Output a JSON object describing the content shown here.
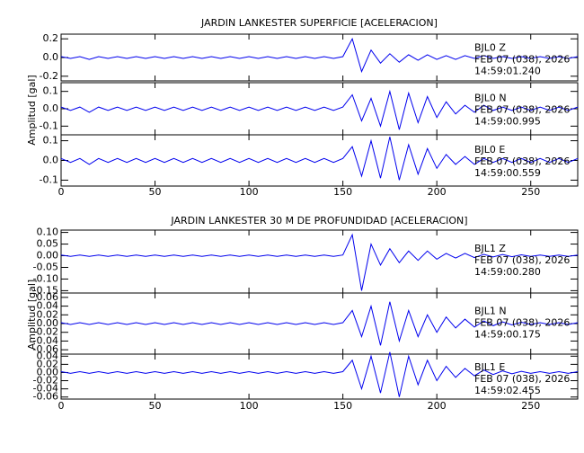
{
  "chart_data": [
    {
      "type": "line",
      "title": "JARDIN LANKESTER SUPERFICIE [ACELERACION]",
      "ylabel": "Amplitud [gal]",
      "xlim": [
        0,
        275
      ],
      "xticks": [
        0,
        50,
        100,
        150,
        200,
        250
      ],
      "x": [
        0,
        5,
        10,
        15,
        20,
        25,
        30,
        35,
        40,
        45,
        50,
        55,
        60,
        65,
        70,
        75,
        80,
        85,
        90,
        95,
        100,
        105,
        110,
        115,
        120,
        125,
        130,
        135,
        140,
        145,
        150,
        155,
        160,
        165,
        170,
        175,
        180,
        185,
        190,
        195,
        200,
        205,
        210,
        215,
        220,
        225,
        230,
        235,
        240,
        245,
        250,
        255,
        260,
        265,
        270,
        275
      ],
      "panels": [
        {
          "name": "BJL0  Z",
          "date": "FEB 07 (038), 2026",
          "time": "14:59:01.240",
          "color": "#0000ee",
          "ylim": [
            -0.25,
            0.25
          ],
          "yticks": [
            0.2,
            {
              "value": 0,
              "label": "0.0"
            },
            -0.2
          ],
          "values": [
            0.01,
            -0.01,
            0.01,
            -0.02,
            0.01,
            -0.01,
            0.01,
            -0.01,
            0.01,
            -0.01,
            0.01,
            -0.01,
            0.01,
            -0.01,
            0.01,
            -0.01,
            0.01,
            -0.01,
            0.01,
            -0.01,
            0.01,
            -0.01,
            0.01,
            -0.01,
            0.01,
            -0.01,
            0.01,
            -0.01,
            0.01,
            -0.01,
            0.01,
            0.2,
            -0.15,
            0.08,
            -0.06,
            0.04,
            -0.05,
            0.03,
            -0.03,
            0.03,
            -0.02,
            0.02,
            -0.02,
            0.02,
            -0.01,
            0.02,
            -0.01,
            0.01,
            -0.01,
            0.01,
            -0.01,
            0.01,
            -0.01,
            0.01,
            -0.01,
            0.01
          ]
        },
        {
          "name": "BJL0  N",
          "date": "FEB 07 (038), 2026",
          "time": "14:59:00.995",
          "color": "#0000ee",
          "ylim": [
            -0.15,
            0.15
          ],
          "yticks": [
            0.1,
            {
              "value": 0,
              "label": "0.0"
            },
            -0.1
          ],
          "values": [
            0.01,
            -0.01,
            0.01,
            -0.02,
            0.01,
            -0.01,
            0.01,
            -0.01,
            0.01,
            -0.01,
            0.01,
            -0.01,
            0.01,
            -0.01,
            0.01,
            -0.01,
            0.01,
            -0.01,
            0.01,
            -0.01,
            0.01,
            -0.01,
            0.01,
            -0.01,
            0.01,
            -0.01,
            0.01,
            -0.01,
            0.01,
            -0.01,
            0.01,
            0.08,
            -0.07,
            0.06,
            -0.1,
            0.1,
            -0.12,
            0.09,
            -0.08,
            0.07,
            -0.05,
            0.04,
            -0.03,
            0.02,
            -0.02,
            0.02,
            -0.01,
            0.01,
            -0.01,
            0.01,
            -0.01,
            0.01,
            -0.01,
            0.01,
            -0.01,
            0.01
          ]
        },
        {
          "name": "BJL0  E",
          "date": "FEB 07 (038), 2026",
          "time": "14:59:00.559",
          "color": "#0000ee",
          "ylim": [
            -0.13,
            0.13
          ],
          "yticks": [
            0.1,
            {
              "value": 0,
              "label": "0.0"
            },
            -0.1
          ],
          "values": [
            0.01,
            -0.01,
            0.01,
            -0.02,
            0.01,
            -0.01,
            0.01,
            -0.01,
            0.01,
            -0.01,
            0.01,
            -0.01,
            0.01,
            -0.01,
            0.01,
            -0.01,
            0.01,
            -0.01,
            0.01,
            -0.01,
            0.01,
            -0.01,
            0.01,
            -0.01,
            0.01,
            -0.01,
            0.01,
            -0.01,
            0.01,
            -0.01,
            0.01,
            0.07,
            -0.08,
            0.1,
            -0.09,
            0.12,
            -0.1,
            0.08,
            -0.07,
            0.06,
            -0.04,
            0.03,
            -0.02,
            0.02,
            -0.02,
            0.01,
            -0.01,
            0.01,
            -0.01,
            0.01,
            -0.01,
            0.01,
            -0.01,
            0.01,
            -0.01,
            0.01
          ]
        }
      ]
    },
    {
      "type": "line",
      "title": "JARDIN LANKESTER 30 M DE PROFUNDIDAD [ACELERACION]",
      "ylabel": "Amplitud [gal]",
      "xlim": [
        0,
        275
      ],
      "xticks": [
        0,
        50,
        100,
        150,
        200,
        250
      ],
      "x": [
        0,
        5,
        10,
        15,
        20,
        25,
        30,
        35,
        40,
        45,
        50,
        55,
        60,
        65,
        70,
        75,
        80,
        85,
        90,
        95,
        100,
        105,
        110,
        115,
        120,
        125,
        130,
        135,
        140,
        145,
        150,
        155,
        160,
        165,
        170,
        175,
        180,
        185,
        190,
        195,
        200,
        205,
        210,
        215,
        220,
        225,
        230,
        235,
        240,
        245,
        250,
        255,
        260,
        265,
        270,
        275
      ],
      "panels": [
        {
          "name": "BJL1  Z",
          "date": "FEB 07 (038), 2026",
          "time": "14:59:00.280",
          "color": "#0000ee",
          "ylim": [
            -0.16,
            0.11
          ],
          "yticks": [
            {
              "value": 0.1,
              "label": "0.10"
            },
            0.05,
            {
              "value": 0,
              "label": "0.00"
            },
            -0.05,
            {
              "value": -0.1,
              "label": "-0.10"
            },
            -0.15
          ],
          "values": [
            0.003,
            -0.003,
            0.003,
            -0.003,
            0.003,
            -0.003,
            0.003,
            -0.003,
            0.003,
            -0.003,
            0.003,
            -0.003,
            0.003,
            -0.003,
            0.003,
            -0.003,
            0.003,
            -0.003,
            0.003,
            -0.003,
            0.003,
            -0.003,
            0.003,
            -0.003,
            0.003,
            -0.003,
            0.003,
            -0.003,
            0.003,
            -0.003,
            0.003,
            0.09,
            -0.15,
            0.05,
            -0.04,
            0.03,
            -0.03,
            0.02,
            -0.02,
            0.02,
            -0.015,
            0.01,
            -0.01,
            0.01,
            -0.008,
            0.006,
            -0.005,
            0.005,
            -0.004,
            0.004,
            -0.003,
            0.003,
            -0.003,
            0.003,
            -0.003,
            0.003
          ]
        },
        {
          "name": "BJL1  N",
          "date": "FEB 07 (038), 2026",
          "time": "14:59:00.175",
          "color": "#0000ee",
          "ylim": [
            -0.07,
            0.07
          ],
          "yticks": [
            0.06,
            0.04,
            0.02,
            {
              "value": 0,
              "label": "0.00"
            },
            -0.02,
            -0.04,
            -0.06
          ],
          "values": [
            0.002,
            -0.002,
            0.002,
            -0.002,
            0.002,
            -0.002,
            0.002,
            -0.002,
            0.002,
            -0.002,
            0.002,
            -0.002,
            0.002,
            -0.002,
            0.002,
            -0.002,
            0.002,
            -0.002,
            0.002,
            -0.002,
            0.002,
            -0.002,
            0.002,
            -0.002,
            0.002,
            -0.002,
            0.002,
            -0.002,
            0.002,
            -0.002,
            0.002,
            0.03,
            -0.03,
            0.04,
            -0.05,
            0.05,
            -0.04,
            0.03,
            -0.03,
            0.02,
            -0.02,
            0.015,
            -0.01,
            0.01,
            -0.008,
            0.006,
            -0.005,
            0.004,
            -0.003,
            0.003,
            -0.002,
            0.002,
            -0.002,
            0.002,
            -0.002,
            0.002
          ]
        },
        {
          "name": "BJL1  E",
          "date": "FEB 07 (038), 2026",
          "time": "14:59:02.455",
          "color": "#0000ee",
          "ylim": [
            -0.065,
            0.045
          ],
          "yticks": [
            0.04,
            0.02,
            {
              "value": 0,
              "label": "0.00"
            },
            -0.02,
            -0.04,
            -0.06
          ],
          "values": [
            0.002,
            -0.002,
            0.002,
            -0.002,
            0.002,
            -0.002,
            0.002,
            -0.002,
            0.002,
            -0.002,
            0.002,
            -0.002,
            0.002,
            -0.002,
            0.002,
            -0.002,
            0.002,
            -0.002,
            0.002,
            -0.002,
            0.002,
            -0.002,
            0.002,
            -0.002,
            0.002,
            -0.002,
            0.002,
            -0.002,
            0.002,
            -0.002,
            0.002,
            0.03,
            -0.04,
            0.04,
            -0.05,
            0.05,
            -0.06,
            0.04,
            -0.03,
            0.03,
            -0.02,
            0.015,
            -0.012,
            0.01,
            -0.008,
            0.006,
            -0.005,
            0.004,
            -0.003,
            0.003,
            -0.002,
            0.002,
            -0.002,
            0.002,
            -0.002,
            0.002
          ]
        }
      ]
    }
  ]
}
